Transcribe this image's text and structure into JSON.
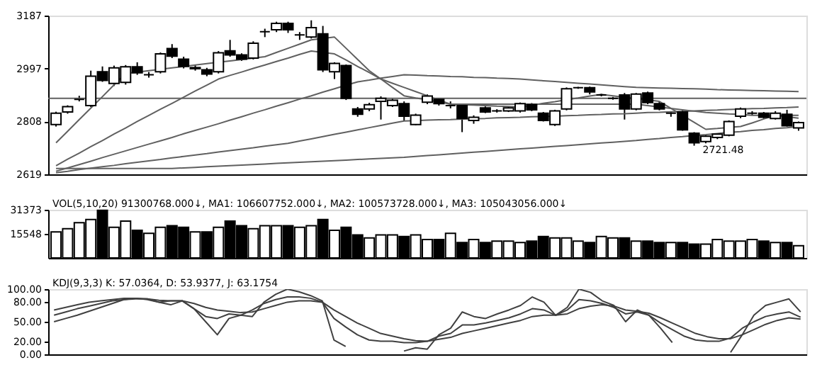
{
  "chart_data": [
    {
      "type": "candlestick",
      "categories": [
        null,
        null,
        null,
        null,
        null,
        null,
        null,
        null,
        null,
        null,
        null,
        null,
        null,
        null,
        null,
        null,
        null,
        null,
        null,
        null,
        null,
        null,
        null,
        null,
        null,
        null,
        null,
        null,
        null,
        null,
        null,
        null,
        null,
        null,
        null,
        null,
        null,
        null,
        null,
        null,
        null,
        null,
        null,
        null,
        null,
        null,
        null,
        null,
        null,
        null,
        null,
        null,
        null,
        null,
        null,
        null,
        null,
        null,
        null,
        null,
        null,
        null,
        null,
        null,
        null
      ],
      "ohlc": [
        [
          2797,
          2843,
          2790,
          2838
        ],
        [
          2842,
          2866,
          2836,
          2861
        ],
        [
          2887,
          2900,
          2880,
          2887
        ],
        [
          2865,
          2990,
          2860,
          2970
        ],
        [
          2986,
          3005,
          2950,
          2955
        ],
        [
          2944,
          3008,
          2935,
          3000
        ],
        [
          2948,
          3010,
          2940,
          3004
        ],
        [
          3004,
          3020,
          2975,
          2982
        ],
        [
          2975,
          2985,
          2965,
          2975
        ],
        [
          2986,
          3055,
          2980,
          3050
        ],
        [
          3069,
          3085,
          3035,
          3042
        ],
        [
          3031,
          3040,
          2998,
          3005
        ],
        [
          2997,
          3010,
          2990,
          3001
        ],
        [
          2993,
          3000,
          2970,
          2978
        ],
        [
          2986,
          3060,
          2980,
          3054
        ],
        [
          3061,
          3100,
          3040,
          3046
        ],
        [
          3046,
          3052,
          3025,
          3031
        ],
        [
          3035,
          3095,
          3030,
          3088
        ],
        [
          3129,
          3140,
          3110,
          3129
        ],
        [
          3136,
          3165,
          3128,
          3159
        ],
        [
          3159,
          3165,
          3125,
          3136
        ],
        [
          3118,
          3128,
          3100,
          3118
        ],
        [
          3110,
          3170,
          3105,
          3144
        ],
        [
          3122,
          3150,
          2985,
          2993
        ],
        [
          2986,
          3020,
          2960,
          3016
        ],
        [
          3008,
          3012,
          2885,
          2891
        ],
        [
          2853,
          2860,
          2825,
          2834
        ],
        [
          2853,
          2875,
          2845,
          2868
        ],
        [
          2880,
          2898,
          2815,
          2891
        ],
        [
          2865,
          2890,
          2860,
          2884
        ],
        [
          2872,
          2880,
          2810,
          2827
        ],
        [
          2797,
          2836,
          2795,
          2831
        ],
        [
          2877,
          2905,
          2870,
          2899
        ],
        [
          2887,
          2892,
          2865,
          2872
        ],
        [
          2865,
          2880,
          2855,
          2865
        ],
        [
          2865,
          2870,
          2770,
          2819
        ],
        [
          2812,
          2830,
          2800,
          2823
        ],
        [
          2857,
          2862,
          2838,
          2842
        ],
        [
          2846,
          2852,
          2840,
          2846
        ],
        [
          2846,
          2862,
          2842,
          2857
        ],
        [
          2846,
          2876,
          2840,
          2872
        ],
        [
          2869,
          2874,
          2845,
          2850
        ],
        [
          2838,
          2842,
          2808,
          2812
        ],
        [
          2797,
          2850,
          2792,
          2846
        ],
        [
          2853,
          2930,
          2848,
          2925
        ],
        [
          2929,
          2932,
          2925,
          2929
        ],
        [
          2929,
          2933,
          2905,
          2914
        ],
        [
          2903,
          2908,
          2898,
          2903
        ],
        [
          2891,
          2896,
          2886,
          2891
        ],
        [
          2903,
          2910,
          2815,
          2853
        ],
        [
          2853,
          2910,
          2848,
          2906
        ],
        [
          2910,
          2915,
          2870,
          2876
        ],
        [
          2872,
          2880,
          2848,
          2853
        ],
        [
          2838,
          2843,
          2825,
          2838
        ],
        [
          2842,
          2850,
          2775,
          2778
        ],
        [
          2766,
          2770,
          2721.48,
          2732
        ],
        [
          2736,
          2760,
          2730,
          2755
        ],
        [
          2751,
          2766,
          2745,
          2763
        ],
        [
          2759,
          2812,
          2755,
          2808
        ],
        [
          2827,
          2858,
          2820,
          2853
        ],
        [
          2838,
          2845,
          2830,
          2838
        ],
        [
          2838,
          2842,
          2818,
          2823
        ],
        [
          2819,
          2845,
          2815,
          2838
        ],
        [
          2834,
          2850,
          2790,
          2793
        ],
        [
          2785,
          2808,
          2775,
          2804
        ]
      ],
      "series": [
        {
          "type": "line",
          "color": "#606060",
          "values": [
            2732,
            2773,
            2815,
            2856,
            2897,
            2939,
            2980,
            2985,
            2990,
            2995,
            3000,
            3005,
            3010,
            3015,
            3020,
            3025,
            3030,
            3035,
            3040,
            3055,
            3070,
            3085,
            3100,
            3105,
            3110,
            3070,
            3030,
            2990,
            2960,
            2930,
            2900,
            2892,
            2885,
            2878,
            2870,
            2868,
            2867,
            2865,
            2863,
            2862,
            2860,
            2866,
            2873,
            2879,
            2886,
            2892,
            2899,
            2905,
            2900,
            2895,
            2890,
            2885,
            2880,
            2855,
            2830,
            2805,
            2780,
            2783,
            2787,
            2790,
            2803,
            2817,
            2830,
            2825,
            2820
          ]
        },
        {
          "type": "line",
          "color": "#606060",
          "values": [
            2650,
            2673,
            2695,
            2718,
            2740,
            2763,
            2785,
            2808,
            2830,
            2852,
            2873,
            2895,
            2917,
            2938,
            2960,
            2973,
            2985,
            2998,
            3010,
            3023,
            3035,
            3048,
            3060,
            3055,
            3050,
            3028,
            3005,
            2983,
            2960,
            2945,
            2930,
            2915,
            2900,
            2885,
            2870,
            2870,
            2870,
            2870,
            2870,
            2870,
            2870,
            2870,
            2870,
            2870,
            2870,
            2870,
            2870,
            2870,
            2870,
            2870,
            2870,
            2865,
            2860,
            2855,
            2850,
            2845,
            2840,
            2838,
            2835,
            2833,
            2830,
            2830,
            2830,
            2830,
            2830
          ]
        },
        {
          "type": "line",
          "color": "#606060",
          "values": [
            2630,
            2642,
            2654,
            2666,
            2679,
            2691,
            2703,
            2715,
            2727,
            2739,
            2751,
            2764,
            2776,
            2788,
            2800,
            2813,
            2825,
            2838,
            2850,
            2863,
            2875,
            2888,
            2900,
            2913,
            2925,
            2938,
            2950,
            2956,
            2963,
            2969,
            2975,
            2974,
            2972,
            2971,
            2969,
            2968,
            2966,
            2965,
            2963,
            2962,
            2960,
            2957,
            2954,
            2951,
            2948,
            2945,
            2942,
            2939,
            2936,
            2933,
            2930,
            2929,
            2928,
            2927,
            2926,
            2925,
            2924,
            2922,
            2921,
            2920,
            2919,
            2918,
            2917,
            2916,
            2915
          ]
        },
        {
          "type": "line",
          "color": "#606060",
          "values": [
            2625,
            2630,
            2636,
            2641,
            2646,
            2651,
            2657,
            2662,
            2667,
            2672,
            2678,
            2683,
            2688,
            2693,
            2699,
            2704,
            2709,
            2714,
            2720,
            2725,
            2730,
            2738,
            2746,
            2754,
            2762,
            2770,
            2778,
            2786,
            2794,
            2802,
            2810,
            2811,
            2813,
            2814,
            2815,
            2817,
            2818,
            2819,
            2821,
            2822,
            2823,
            2825,
            2826,
            2827,
            2829,
            2830,
            2832,
            2833,
            2835,
            2836,
            2838,
            2840,
            2841,
            2843,
            2844,
            2846,
            2848,
            2849,
            2851,
            2852,
            2854,
            2855,
            2857,
            2858,
            2860
          ]
        },
        {
          "type": "line",
          "color": "#606060",
          "values": [
            2640,
            2640,
            2640,
            2640,
            2640,
            2640,
            2640,
            2640,
            2640,
            2640,
            2640,
            2642,
            2644,
            2646,
            2648,
            2650,
            2652,
            2654,
            2656,
            2658,
            2660,
            2662,
            2664,
            2666,
            2668,
            2670,
            2672,
            2674,
            2676,
            2678,
            2680,
            2683,
            2686,
            2689,
            2692,
            2695,
            2698,
            2701,
            2704,
            2707,
            2710,
            2713,
            2716,
            2719,
            2722,
            2725,
            2728,
            2731,
            2734,
            2737,
            2740,
            2744,
            2747,
            2751,
            2754,
            2758,
            2761,
            2765,
            2769,
            2772,
            2776,
            2779,
            2783,
            2786,
            2790
          ]
        }
      ],
      "ref_lines": [
        {
          "axis": "y",
          "value": 2891,
          "color": "#606060"
        }
      ],
      "annotations": [
        "2721.48"
      ],
      "ylim": [
        2619,
        3187
      ],
      "yticks": [
        2619,
        2808,
        2997,
        3187
      ],
      "tick_labels": "y",
      "grid": false
    },
    {
      "type": "bar",
      "categories": [
        null,
        null,
        null,
        null,
        null,
        null,
        null,
        null,
        null,
        null,
        null,
        null,
        null,
        null,
        null,
        null,
        null,
        null,
        null,
        null,
        null,
        null,
        null,
        null,
        null,
        null,
        null,
        null,
        null,
        null,
        null,
        null,
        null,
        null,
        null,
        null,
        null,
        null,
        null,
        null,
        null,
        null,
        null,
        null,
        null,
        null,
        null,
        null,
        null,
        null,
        null,
        null,
        null,
        null,
        null,
        null,
        null,
        null,
        null,
        null,
        null,
        null,
        null,
        null,
        null
      ],
      "values": [
        17000,
        19000,
        23000,
        25000,
        31000,
        20000,
        24000,
        18000,
        16000,
        20000,
        21000,
        20000,
        17000,
        17000,
        20000,
        24000,
        21000,
        19000,
        21000,
        21000,
        21000,
        20000,
        21000,
        25000,
        18000,
        20000,
        15000,
        13000,
        15000,
        15000,
        14000,
        15000,
        12000,
        12000,
        16000,
        10000,
        12000,
        10000,
        11000,
        11000,
        10000,
        11000,
        14000,
        13000,
        13000,
        11000,
        10000,
        14000,
        13000,
        13000,
        11000,
        11000,
        10000,
        10000,
        10000,
        9000,
        9000,
        12000,
        11000,
        11000,
        12000,
        11000,
        10000,
        10000,
        8000
      ],
      "colors": [
        "#ffffff",
        "#ffffff",
        "#ffffff",
        "#ffffff",
        "#000000",
        "#ffffff",
        "#ffffff",
        "#000000",
        "#ffffff",
        "#ffffff",
        "#000000",
        "#000000",
        "#ffffff",
        "#000000",
        "#ffffff",
        "#000000",
        "#000000",
        "#ffffff",
        "#ffffff",
        "#ffffff",
        "#000000",
        "#ffffff",
        "#ffffff",
        "#000000",
        "#ffffff",
        "#000000",
        "#000000",
        "#ffffff",
        "#ffffff",
        "#ffffff",
        "#000000",
        "#ffffff",
        "#ffffff",
        "#000000",
        "#ffffff",
        "#000000",
        "#ffffff",
        "#000000",
        "#ffffff",
        "#ffffff",
        "#ffffff",
        "#000000",
        "#000000",
        "#ffffff",
        "#ffffff",
        "#ffffff",
        "#000000",
        "#ffffff",
        "#ffffff",
        "#000000",
        "#ffffff",
        "#000000",
        "#000000",
        "#ffffff",
        "#000000",
        "#000000",
        "#ffffff",
        "#ffffff",
        "#ffffff",
        "#ffffff",
        "#ffffff",
        "#000000",
        "#ffffff",
        "#000000",
        "#ffffff"
      ],
      "annotations": [
        "VOL(5,10,20) 91300768.000↓, MA1: 106607752.000↓, MA2: 100573728.000↓, MA3: 105043056.000↓"
      ],
      "ylim": [
        0,
        31373
      ],
      "yticks": [
        15548,
        31373
      ],
      "tick_labels": "y",
      "grid": false
    },
    {
      "type": "line",
      "categories": [
        null,
        null,
        null,
        null,
        null,
        null,
        null,
        null,
        null,
        null,
        null,
        null,
        null,
        null,
        null,
        null,
        null,
        null,
        null,
        null,
        null,
        null,
        null,
        null,
        null,
        null,
        null,
        null,
        null,
        null,
        null,
        null,
        null,
        null,
        null,
        null,
        null,
        null,
        null,
        null,
        null,
        null,
        null,
        null,
        null,
        null,
        null,
        null,
        null,
        null,
        null,
        null,
        null,
        null,
        null,
        null,
        null,
        null,
        null,
        null,
        null,
        null,
        null,
        null,
        null
      ],
      "series": [
        {
          "color": "#404040",
          "values": [
            68,
            72,
            76,
            80,
            82,
            84,
            86,
            86,
            84,
            80,
            82,
            82,
            70,
            58,
            55,
            62,
            60,
            68,
            78,
            84,
            88,
            88,
            86,
            80,
            55,
            42,
            30,
            22,
            20,
            20,
            18,
            18,
            20,
            28,
            32,
            45,
            45,
            48,
            52,
            56,
            62,
            70,
            68,
            60,
            68,
            84,
            82,
            78,
            72,
            62,
            65,
            60,
            48,
            38,
            28,
            22,
            20,
            20,
            25,
            40,
            50,
            58,
            62,
            65,
            57
          ]
        },
        {
          "color": "#404040",
          "values": [
            60,
            65,
            70,
            74,
            78,
            82,
            84,
            85,
            85,
            83,
            82,
            82,
            78,
            72,
            68,
            66,
            64,
            65,
            70,
            75,
            80,
            82,
            82,
            80,
            68,
            58,
            48,
            40,
            32,
            28,
            24,
            21,
            20,
            23,
            26,
            32,
            36,
            40,
            44,
            48,
            52,
            58,
            60,
            60,
            62,
            70,
            74,
            76,
            74,
            68,
            66,
            63,
            56,
            48,
            40,
            32,
            27,
            24,
            24,
            30,
            38,
            46,
            52,
            56,
            54
          ]
        },
        {
          "color": "#404040",
          "values": [
            50,
            55,
            60,
            66,
            72,
            78,
            84,
            86,
            85,
            80,
            76,
            82,
            70,
            50,
            30,
            55,
            60,
            58,
            80,
            92,
            100,
            96,
            90,
            82,
            22,
            12,
            null,
            null,
            null,
            null,
            5,
            10,
            8,
            30,
            40,
            65,
            58,
            55,
            62,
            68,
            75,
            88,
            80,
            60,
            72,
            100,
            95,
            82,
            75,
            50,
            68,
            60,
            40,
            18,
            null,
            null,
            null,
            null,
            3,
            30,
            60,
            75,
            80,
            85,
            65
          ]
        }
      ],
      "annotations": [
        "KDJ(9,3,3) K: 57.0364, D: 53.9377, J: 63.1754"
      ],
      "ylim": [
        0,
        100
      ],
      "yticks": [
        {
          "value": 0,
          "label": "0.00"
        },
        {
          "value": 20,
          "label": "20.00"
        },
        {
          "value": 50,
          "label": "50.00"
        },
        {
          "value": 80,
          "label": "80.00"
        },
        {
          "value": 100,
          "label": "100.00"
        }
      ],
      "tick_labels": "y",
      "grid": false
    }
  ]
}
